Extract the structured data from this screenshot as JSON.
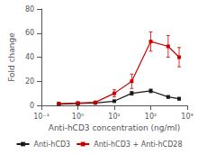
{
  "chart_data": {
    "type": "line",
    "x": [
      0.3,
      1.0,
      3.0,
      10.0,
      30.0,
      100.0,
      300.0,
      600.0
    ],
    "xlabel": "Anti-hCD3 concentration (ng/ml)",
    "ylabel": "Fold change",
    "log": "x",
    "xlim": [
      0.1,
      1000
    ],
    "xticks": [
      {
        "value": 0.1,
        "label": "10⁻¹"
      },
      {
        "value": 1,
        "label": "10⁰"
      },
      {
        "value": 10,
        "label": "10¹"
      },
      {
        "value": 100,
        "label": "10²"
      },
      {
        "value": 1000,
        "label": "10³"
      }
    ],
    "ylim": [
      0,
      80
    ],
    "yticks": [
      0,
      20,
      40,
      60,
      80
    ],
    "grid": false,
    "legend": "bottom",
    "marker": "square",
    "series": [
      {
        "name": "Anti-hCD3",
        "color": "#1a1a1a",
        "values": [
          1.0,
          1.5,
          2.0,
          3.5,
          10.0,
          12.0,
          7.0,
          5.5
        ],
        "yerr": [
          0.3,
          0.3,
          0.3,
          0.5,
          1.5,
          1.5,
          1.0,
          1.0
        ]
      },
      {
        "name": "Anti-hCD3 + Anti-hCD28",
        "color": "#cc0000",
        "values": [
          1.5,
          2.0,
          2.5,
          10.0,
          20.0,
          53.0,
          49.0,
          40.0
        ],
        "yerr": [
          0.5,
          0.5,
          0.5,
          3.0,
          6.0,
          8.0,
          9.0,
          8.0
        ]
      }
    ]
  }
}
